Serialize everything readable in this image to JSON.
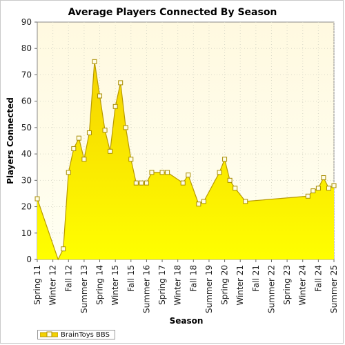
{
  "chart_data": {
    "type": "area",
    "title": "Average Players Connected By Season",
    "xlabel": "Season",
    "ylabel": "Players Connected",
    "ylim": [
      0,
      90
    ],
    "y_ticks": [
      0,
      10,
      20,
      30,
      40,
      50,
      60,
      70,
      80,
      90
    ],
    "x_tick_labels": [
      "Spring 11",
      "Winter 12",
      "Fall 12",
      "Summer 13",
      "Spring 14",
      "Winter 15",
      "Fall 15",
      "Summer 16",
      "Spring 17",
      "Winter 18",
      "Fall 18",
      "Summer 19",
      "Spring 20",
      "Winter 21",
      "Fall 21",
      "Summer 22",
      "Spring 23",
      "Winter 24",
      "Fall 24",
      "Summer 25"
    ],
    "x_range": [
      0,
      57
    ],
    "grid": true,
    "legend_position": "bottom-left",
    "colors": {
      "fill_top": "#f4d200",
      "fill_bottom": "#ffff00",
      "line": "#b89a00",
      "marker_fill": "#fffde6",
      "plot_bg_top": "#fff9e0",
      "plot_bg_bottom": "#fffff2"
    },
    "series": [
      {
        "name": "BrainToys BBS",
        "points": [
          [
            0,
            23
          ],
          [
            4,
            0
          ],
          [
            5,
            4
          ],
          [
            6,
            33
          ],
          [
            7,
            42
          ],
          [
            8,
            46
          ],
          [
            9,
            38
          ],
          [
            10,
            48
          ],
          [
            11,
            75
          ],
          [
            12,
            62
          ],
          [
            13,
            49
          ],
          [
            14,
            41
          ],
          [
            15,
            58
          ],
          [
            16,
            67
          ],
          [
            17,
            50
          ],
          [
            18,
            38
          ],
          [
            19,
            29
          ],
          [
            20,
            29
          ],
          [
            21,
            29
          ],
          [
            22,
            33
          ],
          [
            24,
            33
          ],
          [
            25,
            33
          ],
          [
            28,
            29
          ],
          [
            29,
            32
          ],
          [
            31,
            21
          ],
          [
            32,
            22
          ],
          [
            35,
            33
          ],
          [
            36,
            38
          ],
          [
            37,
            30
          ],
          [
            38,
            27
          ],
          [
            40,
            22
          ],
          [
            52,
            24
          ],
          [
            53,
            26
          ],
          [
            54,
            27
          ],
          [
            55,
            31
          ],
          [
            56,
            27
          ],
          [
            57,
            28
          ]
        ],
        "markers": [
          [
            0,
            23
          ],
          [
            5,
            4
          ],
          [
            6,
            33
          ],
          [
            7,
            42
          ],
          [
            8,
            46
          ],
          [
            9,
            38
          ],
          [
            10,
            48
          ],
          [
            11,
            75
          ],
          [
            12,
            62
          ],
          [
            13,
            49
          ],
          [
            14,
            41
          ],
          [
            15,
            58
          ],
          [
            16,
            67
          ],
          [
            17,
            50
          ],
          [
            18,
            38
          ],
          [
            19,
            29
          ],
          [
            20,
            29
          ],
          [
            21,
            29
          ],
          [
            22,
            33
          ],
          [
            24,
            33
          ],
          [
            25,
            33
          ],
          [
            28,
            29
          ],
          [
            29,
            32
          ],
          [
            31,
            21
          ],
          [
            32,
            22
          ],
          [
            35,
            33
          ],
          [
            36,
            38
          ],
          [
            37,
            30
          ],
          [
            38,
            27
          ],
          [
            40,
            22
          ],
          [
            52,
            24
          ],
          [
            53,
            26
          ],
          [
            54,
            27
          ],
          [
            55,
            31
          ],
          [
            56,
            27
          ],
          [
            57,
            28
          ]
        ]
      }
    ]
  }
}
